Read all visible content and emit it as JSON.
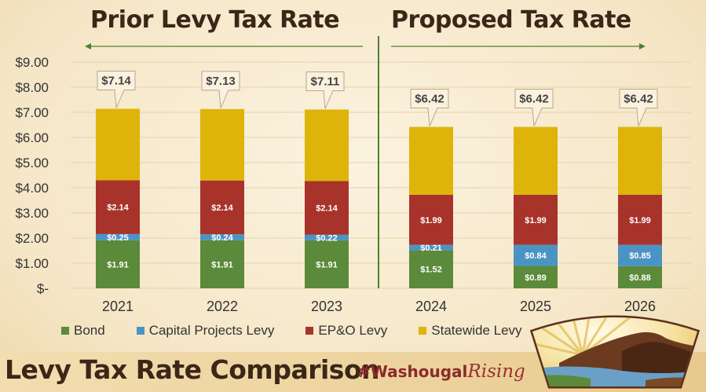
{
  "headers": {
    "prior": "Prior Levy Tax Rate",
    "proposed": "Proposed Tax Rate"
  },
  "footer": {
    "title": "Levy Tax Rate Comparison",
    "hashtag_prefix": "#Washougal",
    "hashtag_script": "Rising"
  },
  "colors": {
    "bond": "#5b8a3a",
    "capital": "#4a94c4",
    "epo": "#a8332b",
    "statewide": "#deb40a",
    "accent_line": "#4f7f2d"
  },
  "chart_data": {
    "type": "bar",
    "stacked": true,
    "categories": [
      "2021",
      "2022",
      "2023",
      "2024",
      "2025",
      "2026"
    ],
    "series": [
      {
        "name": "Bond",
        "values": [
          1.91,
          1.91,
          1.91,
          1.52,
          0.89,
          0.88
        ],
        "labels": [
          "$1.91",
          "$1.91",
          "$1.91",
          "$1.52",
          "$0.89",
          "$0.88"
        ]
      },
      {
        "name": "Capital Projects Levy",
        "values": [
          0.25,
          0.24,
          0.22,
          0.21,
          0.84,
          0.85
        ],
        "labels": [
          "$0.25",
          "$0.24",
          "$0.22",
          "$0.21",
          "$0.84",
          "$0.85"
        ]
      },
      {
        "name": "EP&O Levy",
        "values": [
          2.14,
          2.14,
          2.14,
          1.99,
          1.99,
          1.99
        ],
        "labels": [
          "$2.14",
          "$2.14",
          "$2.14",
          "$1.99",
          "$1.99",
          "$1.99"
        ]
      },
      {
        "name": "Statewide Levy",
        "values": [
          2.84,
          2.84,
          2.84,
          2.7,
          2.7,
          2.7
        ],
        "labels": []
      }
    ],
    "totals": [
      7.14,
      7.13,
      7.11,
      6.42,
      6.42,
      6.42
    ],
    "total_labels": [
      "$7.14",
      "$7.13",
      "$7.11",
      "$6.42",
      "$6.42",
      "$6.42"
    ],
    "yticks": [
      0,
      1,
      2,
      3,
      4,
      5,
      6,
      7,
      8,
      9
    ],
    "ytick_labels": [
      "$-",
      "$1.00",
      "$2.00",
      "$3.00",
      "$4.00",
      "$5.00",
      "$6.00",
      "$7.00",
      "$8.00",
      "$9.00"
    ],
    "ylim": [
      0,
      9
    ],
    "grid": true,
    "legend": "bottom"
  }
}
